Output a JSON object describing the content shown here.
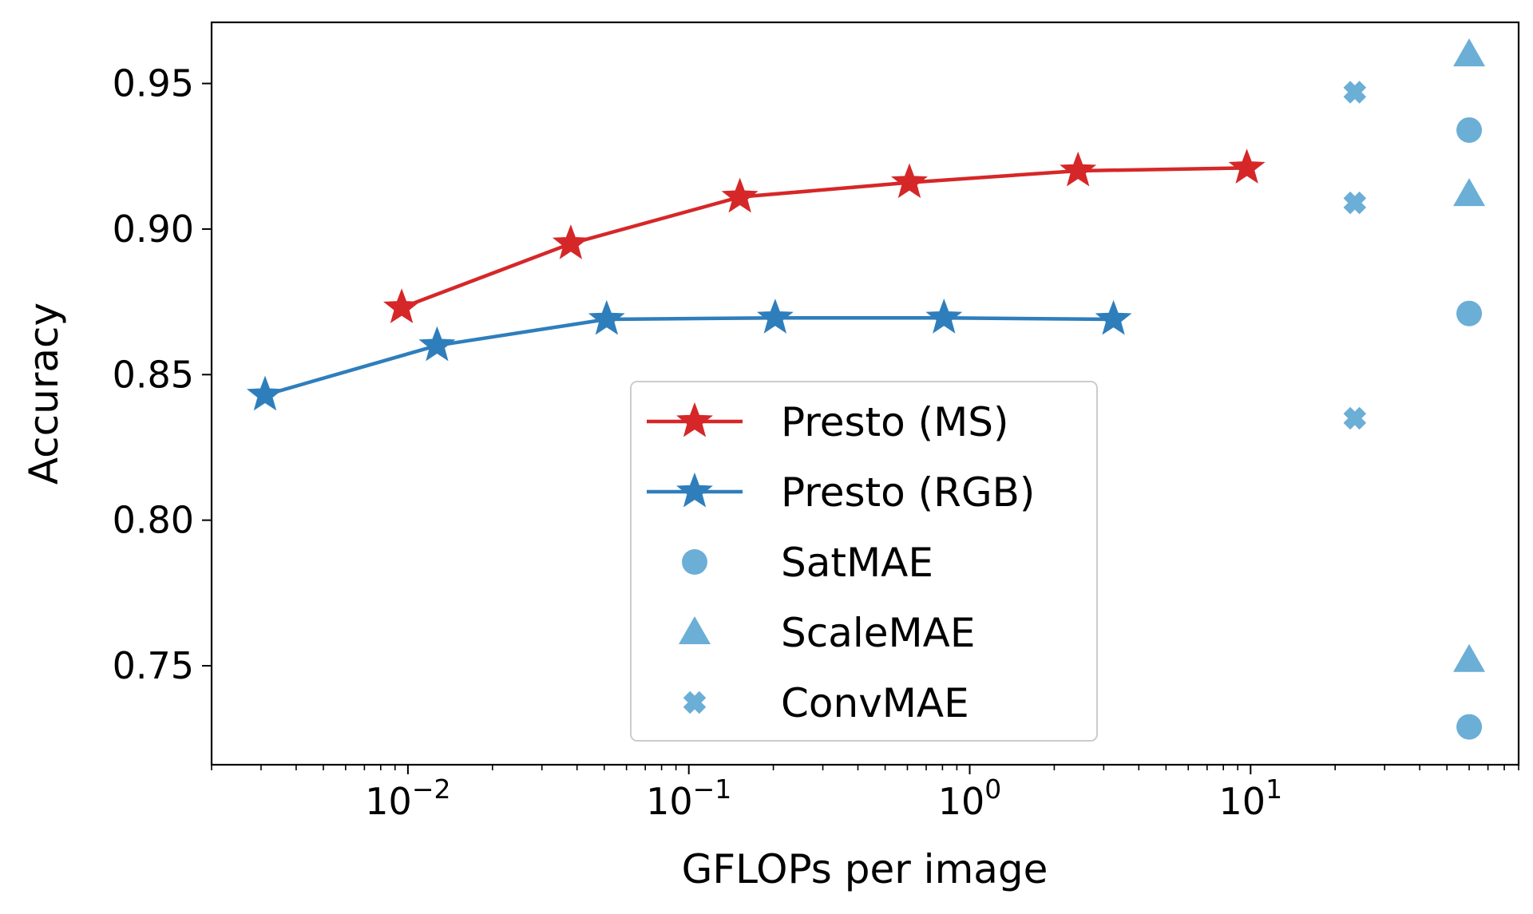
{
  "chart_data": {
    "type": "scatter",
    "xscale": "log",
    "xlabel": "GFLOPs per image",
    "ylabel": "Accuracy",
    "xlim": [
      0.002,
      90
    ],
    "ylim": [
      0.716,
      0.971
    ],
    "xticks": [
      {
        "value": 0.01,
        "mantissa": "10",
        "exp": "−2"
      },
      {
        "value": 0.1,
        "mantissa": "10",
        "exp": "−1"
      },
      {
        "value": 1,
        "mantissa": "10",
        "exp": "0"
      },
      {
        "value": 10,
        "mantissa": "10",
        "exp": "1"
      }
    ],
    "yticks": [
      {
        "value": 0.75,
        "label": "0.75"
      },
      {
        "value": 0.8,
        "label": "0.80"
      },
      {
        "value": 0.85,
        "label": "0.85"
      },
      {
        "value": 0.9,
        "label": "0.90"
      },
      {
        "value": 0.95,
        "label": "0.95"
      }
    ],
    "series": [
      {
        "name": "Presto (MS)",
        "marker": "star",
        "line": true,
        "color": "#d62728",
        "x": [
          0.0095,
          0.038,
          0.152,
          0.61,
          2.43,
          9.7
        ],
        "y": [
          0.873,
          0.895,
          0.911,
          0.916,
          0.92,
          0.921
        ]
      },
      {
        "name": "Presto (RGB)",
        "marker": "star",
        "line": true,
        "color": "#2f7ebc",
        "x": [
          0.0031,
          0.0127,
          0.051,
          0.203,
          0.81,
          3.25
        ],
        "y": [
          0.843,
          0.86,
          0.869,
          0.8695,
          0.8695,
          0.869
        ]
      },
      {
        "name": "SatMAE",
        "marker": "circle",
        "line": false,
        "color": "#6baed6",
        "x": [
          60,
          60,
          60
        ],
        "y": [
          0.934,
          0.871,
          0.729
        ]
      },
      {
        "name": "ScaleMAE",
        "marker": "triangle",
        "line": false,
        "color": "#6baed6",
        "x": [
          60,
          60,
          60
        ],
        "y": [
          0.96,
          0.912,
          0.752
        ]
      },
      {
        "name": "ConvMAE",
        "marker": "x",
        "line": false,
        "color": "#6baed6",
        "x": [
          23.5,
          23.5,
          23.5
        ],
        "y": [
          0.947,
          0.909,
          0.835
        ]
      }
    ],
    "legend": {
      "position": "lower-center"
    }
  }
}
